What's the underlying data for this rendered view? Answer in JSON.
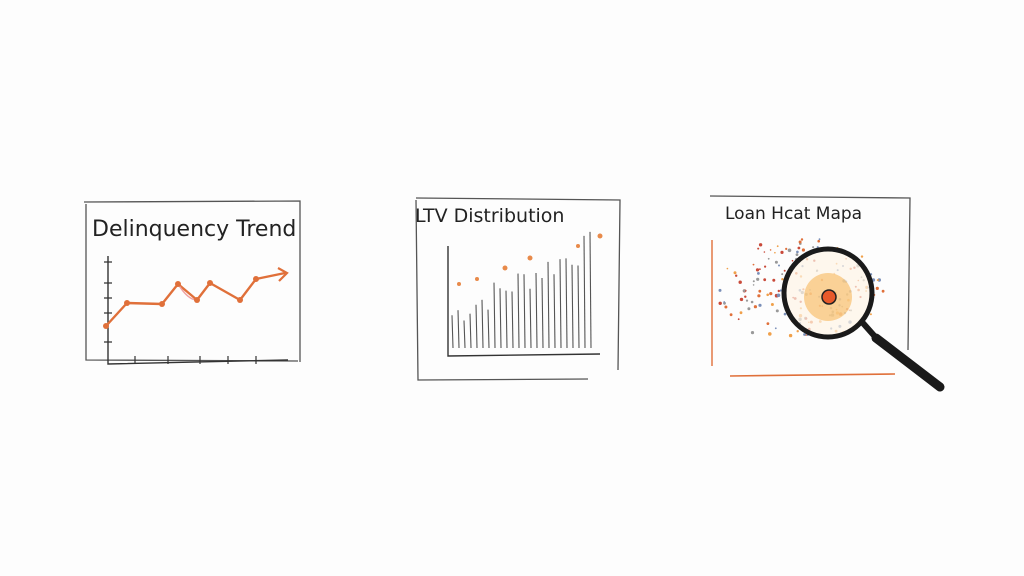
{
  "panels": [
    {
      "title": "Delinquency Trend"
    },
    {
      "title": "LTV Distribution"
    },
    {
      "title": "Loan Hcat Mapa"
    }
  ]
}
